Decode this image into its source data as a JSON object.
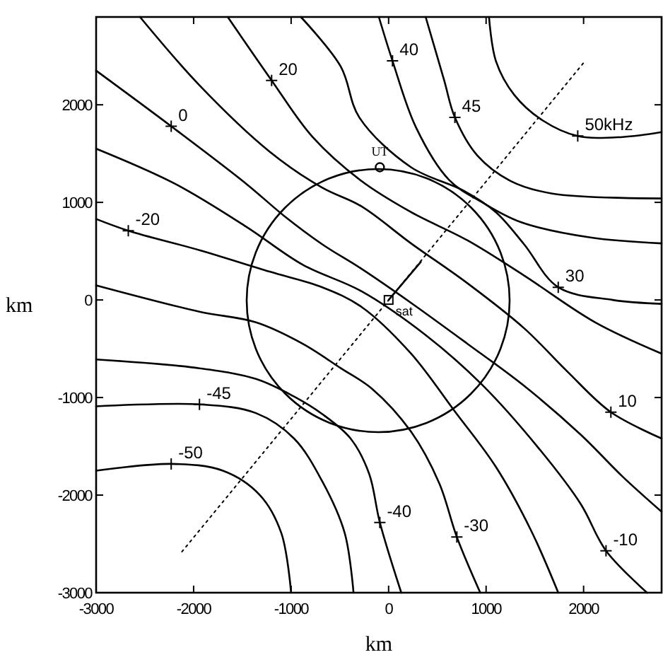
{
  "chart_data": {
    "type": "line",
    "xlabel": "km",
    "ylabel": "km",
    "xlim": [
      -3000,
      2800
    ],
    "ylim": [
      -3000,
      2900
    ],
    "xticks": [
      -3000,
      -2000,
      -1000,
      0,
      1000,
      2000
    ],
    "yticks": [
      -3000,
      -2000,
      -1000,
      0,
      1000,
      2000
    ],
    "series": [
      {
        "color": "#000000",
        "x": [
          1030,
          1100,
          1290,
          1580,
          1940,
          2400,
          2800
        ],
        "values": [
          2900,
          2450,
          2100,
          1840,
          1680,
          1670,
          1720
        ]
      },
      {
        "color": "#000000",
        "x": [
          380,
          570,
          680,
          910,
          1250,
          1680,
          2800
        ],
        "values": [
          2900,
          2250,
          1870,
          1480,
          1220,
          1090,
          1040
        ]
      },
      {
        "color": "#000000",
        "x": [
          -100,
          40,
          280,
          620,
          960,
          1350,
          2070,
          2800
        ],
        "values": [
          2900,
          2450,
          1770,
          1230,
          1000,
          800,
          640,
          580
        ]
      },
      {
        "color": "#000000",
        "x": [
          -900,
          -490,
          -300,
          230,
          770,
          1100,
          1390,
          1740,
          2300,
          2800
        ],
        "values": [
          2900,
          2390,
          1870,
          1360,
          1120,
          900,
          570,
          130,
          0,
          -40
        ]
      },
      {
        "color": "#000000",
        "x": [
          -1650,
          -1200,
          -780,
          -280,
          230,
          810,
          1390,
          2120,
          2800
        ],
        "values": [
          2900,
          2250,
          1670,
          1220,
          900,
          610,
          250,
          -230,
          -550
        ]
      },
      {
        "color": "#000000",
        "x": [
          -2550,
          -1940,
          -1220,
          -680,
          -280,
          230,
          810,
          1390,
          1830,
          2280,
          2800
        ],
        "values": [
          2900,
          2200,
          1520,
          1150,
          960,
          580,
          170,
          -290,
          -730,
          -1150,
          -1420
        ]
      },
      {
        "color": "#000000",
        "x": [
          -3000,
          -2230,
          -1460,
          -1070,
          -680,
          -280,
          230,
          810,
          1390,
          1970,
          2400,
          2800
        ],
        "values": [
          2350,
          1780,
          1190,
          860,
          570,
          320,
          -30,
          -450,
          -880,
          -1380,
          -1810,
          -2170
        ]
      },
      {
        "color": "#000000",
        "x": [
          -3000,
          -2190,
          -1460,
          -880,
          -280,
          380,
          960,
          1540,
          1970,
          2230,
          2650
        ],
        "values": [
          1550,
          1190,
          750,
          360,
          90,
          -360,
          -870,
          -1520,
          -2090,
          -2570,
          -3000
        ]
      },
      {
        "color": "#000000",
        "x": [
          -3000,
          -2670,
          -1940,
          -1220,
          -680,
          -280,
          230,
          670,
          1100,
          1460,
          1740
        ],
        "values": [
          830,
          710,
          510,
          290,
          130,
          -70,
          -550,
          -1130,
          -1710,
          -2360,
          -3000
        ]
      },
      {
        "color": "#000000",
        "x": [
          -3000,
          -1940,
          -1360,
          -880,
          -490,
          -170,
          230,
          520,
          700,
          940
        ],
        "values": [
          150,
          -120,
          -230,
          -450,
          -700,
          -910,
          -1350,
          -1880,
          -2430,
          -3000
        ]
      },
      {
        "color": "#000000",
        "x": [
          -3000,
          -1940,
          -1360,
          -970,
          -680,
          -390,
          -200,
          -90,
          130
        ],
        "values": [
          -610,
          -700,
          -810,
          -990,
          -1170,
          -1420,
          -1780,
          -2280,
          -3000
        ]
      },
      {
        "color": "#000000",
        "x": [
          -3000,
          -1940,
          -1360,
          -970,
          -680,
          -450,
          -360
        ],
        "values": [
          -1090,
          -1070,
          -1160,
          -1420,
          -1860,
          -2390,
          -3000
        ]
      },
      {
        "color": "#000000",
        "x": [
          -3000,
          -2230,
          -1700,
          -1320,
          -1100,
          -1000
        ],
        "values": [
          -1750,
          -1680,
          -1750,
          -2000,
          -2390,
          -3000
        ]
      },
      {
        "color": "#000000",
        "line_style": "dotted",
        "x": [
          -2120,
          2000
        ],
        "values": [
          -2580,
          2430
        ]
      },
      {
        "color": "#000000",
        "x": [
          0,
          330
        ],
        "values": [
          0,
          390
        ]
      },
      {
        "type": "scatter",
        "name": "UT",
        "marker": "circle",
        "color": "#000000",
        "x": [
          -90
        ],
        "values": [
          1360
        ]
      },
      {
        "type": "scatter",
        "name": "sat",
        "marker": "square",
        "color": "#000000",
        "x": [
          0
        ],
        "values": [
          0
        ]
      }
    ],
    "annotations": [
      {
        "text": "50kHz",
        "x": 1940,
        "y": 1680
      },
      {
        "text": "45",
        "x": 680,
        "y": 1870
      },
      {
        "text": "40",
        "x": 40,
        "y": 2450
      },
      {
        "text": "30",
        "x": 1740,
        "y": 130
      },
      {
        "text": "20",
        "x": -1200,
        "y": 2250
      },
      {
        "text": "10",
        "x": 2280,
        "y": -1150
      },
      {
        "text": "0",
        "x": -2230,
        "y": 1780
      },
      {
        "text": "-10",
        "x": 2230,
        "y": -2570
      },
      {
        "text": "-20",
        "x": -2670,
        "y": 710
      },
      {
        "text": "-30",
        "x": 700,
        "y": -2430
      },
      {
        "text": "-40",
        "x": -90,
        "y": -2280
      },
      {
        "text": "-45",
        "x": -1940,
        "y": -1070
      },
      {
        "text": "-50",
        "x": -2230,
        "y": -1680
      }
    ]
  }
}
